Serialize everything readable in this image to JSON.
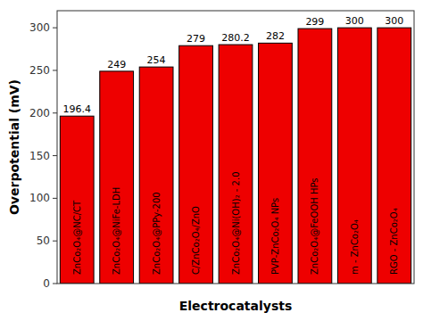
{
  "chart_data": {
    "type": "bar",
    "categories": [
      "ZnCo₂O₄@NC/CT",
      "ZnCo₂O₄@NiFe-LDH",
      "ZnCo₂O₄@PPy-200",
      "C/ZnCo₂O₄/ZnO",
      "ZnCo₂O₄@Ni(OH)₂ - 2.0",
      "PVP-ZnCo₂O₄ NPs",
      "ZnCo₂O₄@FeOOH HPs",
      "m - ZnCo₂O₄",
      "RGO - ZnCo₂O₄"
    ],
    "values": [
      196.4,
      249,
      254,
      279,
      280.2,
      282,
      299,
      300,
      300
    ],
    "color": "#ee0000",
    "xlabel": "Electrocatalysts",
    "ylabel": "Overpotential (mV)",
    "ylim": [
      0,
      320
    ],
    "yticks": [
      0,
      50,
      100,
      150,
      200,
      250,
      300
    ],
    "grid": false,
    "data_labels": true
  }
}
